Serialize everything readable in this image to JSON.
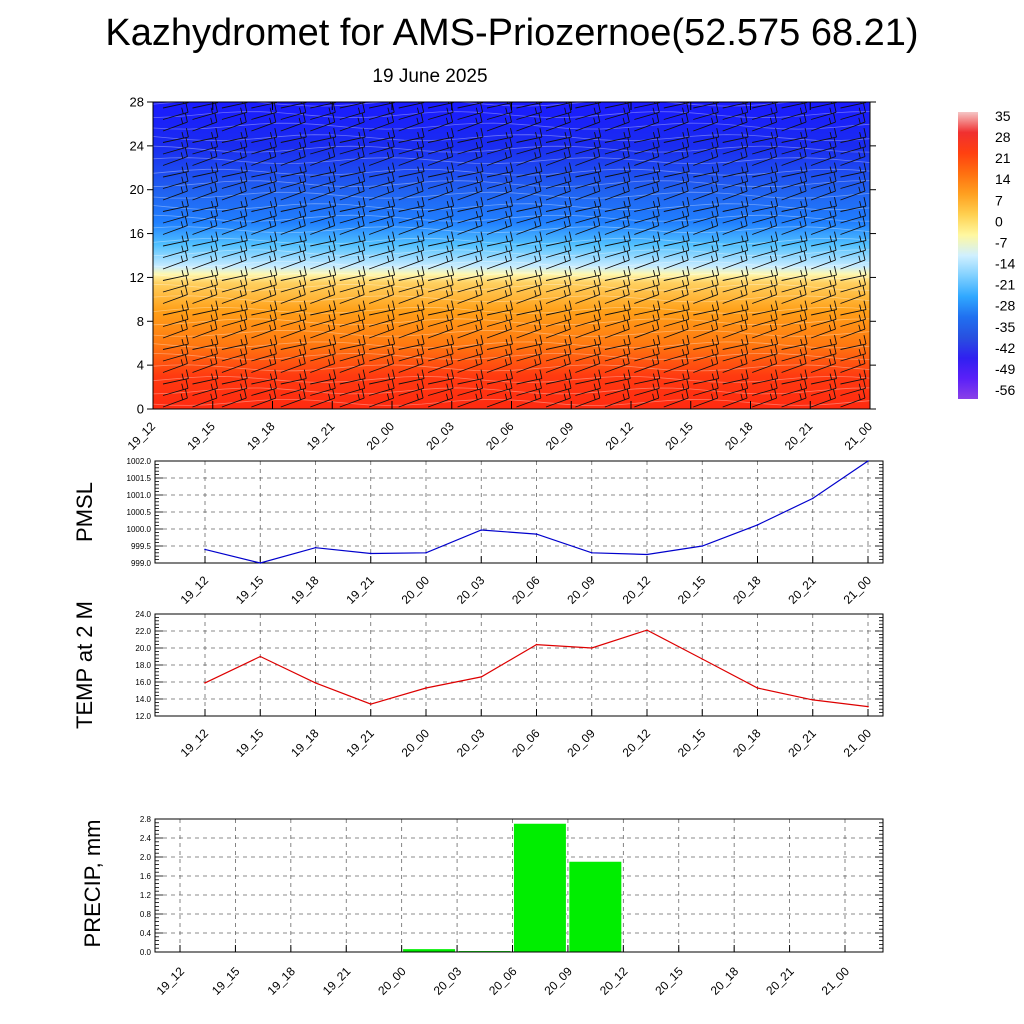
{
  "title": "Kazhydromet for AMS-Priozernoe(52.575 68.21)",
  "subtitle": "19 June 2025",
  "time_labels": [
    "19_12",
    "19_15",
    "19_18",
    "19_21",
    "20_00",
    "20_03",
    "20_06",
    "20_09",
    "20_12",
    "20_15",
    "20_18",
    "20_21",
    "21_00"
  ],
  "chart_data": [
    {
      "type": "heatmap",
      "name": "temperature-cross-section",
      "x": [
        "19_12",
        "19_15",
        "19_18",
        "19_21",
        "20_00",
        "20_03",
        "20_06",
        "20_09",
        "20_12",
        "20_15",
        "20_18",
        "20_21",
        "21_00"
      ],
      "y_ticks": [
        0,
        4,
        8,
        12,
        16,
        20,
        24,
        28
      ],
      "ylim": [
        0,
        28
      ],
      "colorbar_labels": [
        "35",
        "28",
        "21",
        "14",
        "7",
        "0",
        "-7",
        "-14",
        "-21",
        "-28",
        "-35",
        "-42",
        "-49",
        "-56"
      ],
      "colorbar_range": [
        -63,
        42
      ],
      "gradient_stops": [
        {
          "y": 0,
          "color": "#ff2a10"
        },
        {
          "y": 3,
          "color": "#ff3a10"
        },
        {
          "y": 6,
          "color": "#ff7a10"
        },
        {
          "y": 9,
          "color": "#ffa018"
        },
        {
          "y": 11.5,
          "color": "#ffd060"
        },
        {
          "y": 12.3,
          "color": "#fff8b0"
        },
        {
          "y": 13,
          "color": "#c8ecff"
        },
        {
          "y": 15,
          "color": "#50c0ff"
        },
        {
          "y": 17,
          "color": "#2080ff"
        },
        {
          "y": 20,
          "color": "#2060f0"
        },
        {
          "y": 24,
          "color": "#1a2cf0"
        },
        {
          "y": 28,
          "color": "#1a1aff"
        }
      ],
      "colors": {
        "colorbar": [
          "#f5c6c6",
          "#f03030",
          "#ff4010",
          "#ff7010",
          "#ffa020",
          "#ffd050",
          "#fff8a0",
          "#d0f0ff",
          "#80d0ff",
          "#30a8ff",
          "#2070f0",
          "#2850e0",
          "#3020f0",
          "#5a20f8",
          "#8a40e8"
        ]
      },
      "wind_barbs": true
    },
    {
      "type": "line",
      "name": "PMSL",
      "ylabel": "PMSL",
      "x": [
        "19_12",
        "19_15",
        "19_18",
        "19_21",
        "20_00",
        "20_03",
        "20_06",
        "20_09",
        "20_12",
        "20_15",
        "20_18",
        "20_21",
        "21_00"
      ],
      "series": [
        {
          "values": [
            999.4,
            999.0,
            999.45,
            999.28,
            999.3,
            999.97,
            999.85,
            999.3,
            999.25,
            999.5,
            1000.12,
            1000.9,
            1002.0
          ],
          "color": "#0000cc"
        }
      ],
      "ylim": [
        999.0,
        1002.0
      ],
      "y_ticks": [
        "999.0",
        "999.5",
        "1000.0",
        "1000.5",
        "1001.0",
        "1001.5",
        "1002.0"
      ],
      "grid": true
    },
    {
      "type": "line",
      "name": "TEMP at 2 M",
      "ylabel": "TEMP at 2 M",
      "x": [
        "19_12",
        "19_15",
        "19_18",
        "19_21",
        "20_00",
        "20_03",
        "20_06",
        "20_09",
        "20_12",
        "20_15",
        "20_18",
        "20_21",
        "21_00"
      ],
      "series": [
        {
          "values": [
            15.9,
            19.0,
            15.9,
            13.4,
            15.3,
            16.6,
            20.4,
            20.0,
            22.1,
            18.7,
            15.3,
            13.9,
            13.1
          ],
          "color": "#dd0000"
        }
      ],
      "ylim": [
        12.0,
        24.0
      ],
      "y_ticks": [
        "12.0",
        "14.0",
        "16.0",
        "18.0",
        "20.0",
        "22.0",
        "24.0"
      ],
      "grid": true
    },
    {
      "type": "bar",
      "name": "PRECIP, mm",
      "ylabel": "PRECIP, mm",
      "categories": [
        "19_12",
        "19_15",
        "19_18",
        "19_21",
        "20_00",
        "20_03",
        "20_06",
        "20_09",
        "20_12",
        "20_15",
        "20_18",
        "20_21",
        "21_00"
      ],
      "values": [
        0,
        0,
        0,
        0,
        0,
        0.06,
        0.02,
        2.7,
        1.9,
        0,
        0,
        0,
        0
      ],
      "color": "#00ee00",
      "ylim": [
        0,
        2.8
      ],
      "y_ticks": [
        "0.0",
        "0.4",
        "0.8",
        "1.2",
        "1.6",
        "2.0",
        "2.4",
        "2.8"
      ],
      "grid": true
    }
  ]
}
